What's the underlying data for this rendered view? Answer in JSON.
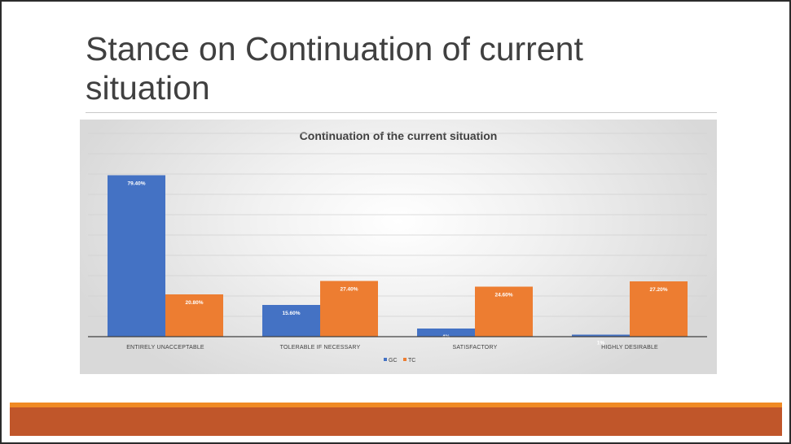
{
  "slide": {
    "title": "Stance on Continuation of current situation"
  },
  "colors": {
    "gc": "#4472c4",
    "tc": "#ed7d31",
    "footer_accent": "#f08a24",
    "footer_bar": "#c0562a"
  },
  "chart_data": {
    "type": "bar",
    "title": "Continuation of the current situation",
    "categories": [
      "ENTIRELY UNACCEPTABLE",
      "TOLERABLE IF NECESSARY",
      "SATISFACTORY",
      "HIGHLY DESIRABLE"
    ],
    "series": [
      {
        "name": "GC",
        "values": [
          79.4,
          15.6,
          4,
          1
        ],
        "labels": [
          "79.40%",
          "15.60%",
          "4%",
          "1%"
        ]
      },
      {
        "name": "TC",
        "values": [
          20.8,
          27.4,
          24.6,
          27.2
        ],
        "labels": [
          "20.80%",
          "27.40%",
          "24.60%",
          "27.20%"
        ]
      }
    ],
    "ylim": [
      0,
      100
    ],
    "grid": true,
    "legend": "bottom",
    "axis_labels_visible": false
  }
}
